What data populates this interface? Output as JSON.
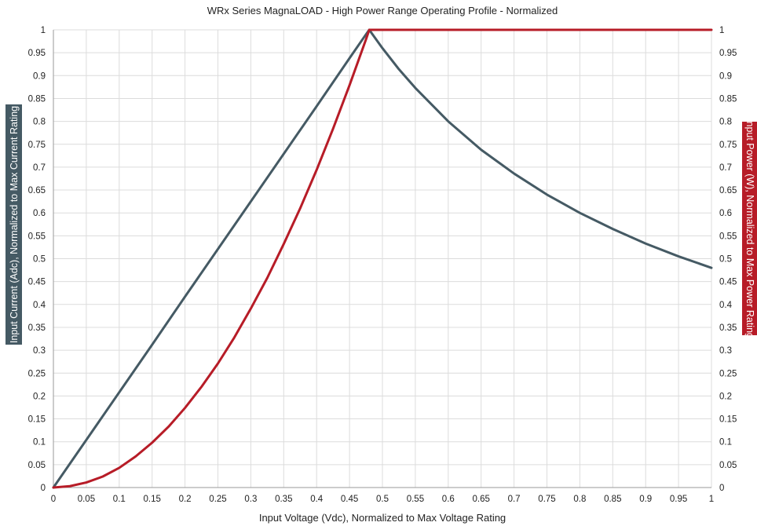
{
  "chart_data": {
    "type": "line",
    "title": "WRx Series MagnaLOAD - High Power Range Operating Profile - Normalized",
    "xlabel": "Input Voltage (Vdc), Normalized to Max Voltage Rating",
    "ylabel_left": "Input Current (Adc), Normalized to Max Current Rating",
    "ylabel_right": "Input Power (W), Normalized to Max Power Rating",
    "xlim": [
      0,
      1
    ],
    "ylim": [
      0,
      1
    ],
    "x_ticks": [
      "0",
      "0.05",
      "0.1",
      "0.15",
      "0.2",
      "0.25",
      "0.3",
      "0.35",
      "0.4",
      "0.45",
      "0.5",
      "0.55",
      "0.6",
      "0.65",
      "0.7",
      "0.75",
      "0.8",
      "0.85",
      "0.9",
      "0.95",
      "1"
    ],
    "y_ticks": [
      "0",
      "0.05",
      "0.1",
      "0.15",
      "0.2",
      "0.25",
      "0.3",
      "0.35",
      "0.4",
      "0.45",
      "0.5",
      "0.55",
      "0.6",
      "0.65",
      "0.7",
      "0.75",
      "0.8",
      "0.85",
      "0.9",
      "0.95",
      "1"
    ],
    "grid": true,
    "colors": {
      "current": "#455a64",
      "power": "#b71c27"
    },
    "series": [
      {
        "key": "current",
        "axis": "left",
        "x": [
          0,
          0.05,
          0.1,
          0.15,
          0.2,
          0.25,
          0.3,
          0.35,
          0.4,
          0.45,
          0.475,
          0.48,
          0.5,
          0.525,
          0.55,
          0.6,
          0.65,
          0.7,
          0.75,
          0.8,
          0.85,
          0.9,
          0.95,
          1
        ],
        "values": [
          0,
          0.104,
          0.208,
          0.312,
          0.417,
          0.521,
          0.625,
          0.729,
          0.833,
          0.938,
          0.99,
          1,
          0.96,
          0.914,
          0.873,
          0.8,
          0.738,
          0.686,
          0.64,
          0.6,
          0.565,
          0.533,
          0.505,
          0.48
        ]
      },
      {
        "key": "power",
        "axis": "right",
        "x": [
          0,
          0.025,
          0.05,
          0.075,
          0.1,
          0.125,
          0.15,
          0.175,
          0.2,
          0.225,
          0.25,
          0.275,
          0.3,
          0.325,
          0.35,
          0.375,
          0.4,
          0.425,
          0.45,
          0.475,
          0.48,
          0.5,
          0.55,
          0.6,
          0.65,
          0.7,
          0.75,
          0.8,
          0.85,
          0.9,
          0.95,
          1
        ],
        "values": [
          0,
          0.003,
          0.011,
          0.024,
          0.043,
          0.068,
          0.098,
          0.133,
          0.174,
          0.22,
          0.271,
          0.328,
          0.391,
          0.458,
          0.532,
          0.61,
          0.694,
          0.784,
          0.879,
          0.979,
          1,
          1,
          1,
          1,
          1,
          1,
          1,
          1,
          1,
          1,
          1,
          1
        ]
      }
    ]
  }
}
